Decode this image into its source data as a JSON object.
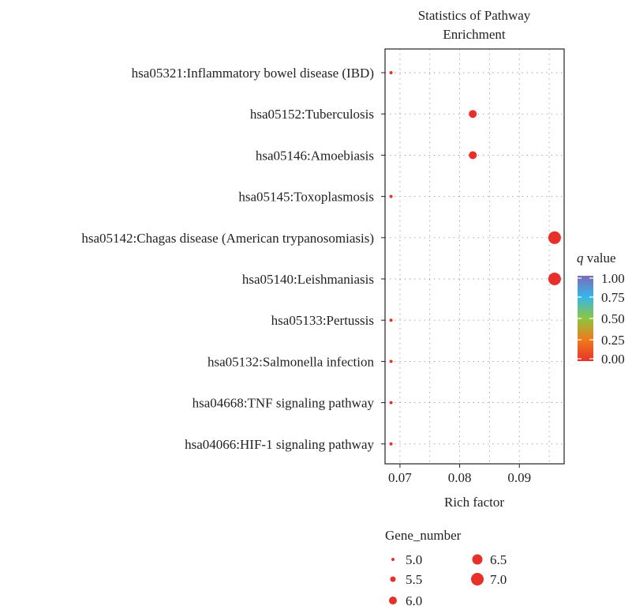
{
  "chart_data": {
    "type": "scatter",
    "title": "Statistics of Pathway Enrichment",
    "title_lines": [
      "Statistics of Pathway",
      "Enrichment"
    ],
    "xlabel": "Rich factor",
    "ylabel": "",
    "xlim": [
      0.0675,
      0.0975
    ],
    "xticks": [
      0.07,
      0.08,
      0.09
    ],
    "xtick_labels": [
      "0.07",
      "0.08",
      "0.09"
    ],
    "grid": true,
    "categories": [
      "hsa05321:Inflammatory bowel disease (IBD)",
      "hsa05152:Tuberculosis",
      "hsa05146:Amoebiasis",
      "hsa05145:Toxoplasmosis",
      "hsa05142:Chagas disease (American trypanosomiasis)",
      "hsa05140:Leishmaniasis",
      "hsa05133:Pertussis",
      "hsa05132:Salmonella infection",
      "hsa04668:TNF signaling pathway",
      "hsa04066:HIF-1 signaling pathway"
    ],
    "points": [
      {
        "pathway": "hsa05321:Inflammatory bowel disease (IBD)",
        "rich_factor": 0.0685,
        "gene_number": 5,
        "q_value": 0.0
      },
      {
        "pathway": "hsa05152:Tuberculosis",
        "rich_factor": 0.0822,
        "gene_number": 6,
        "q_value": 0.0
      },
      {
        "pathway": "hsa05146:Amoebiasis",
        "rich_factor": 0.0822,
        "gene_number": 6,
        "q_value": 0.0
      },
      {
        "pathway": "hsa05145:Toxoplasmosis",
        "rich_factor": 0.0685,
        "gene_number": 5,
        "q_value": 0.0
      },
      {
        "pathway": "hsa05142:Chagas disease (American trypanosomiasis)",
        "rich_factor": 0.0959,
        "gene_number": 7,
        "q_value": 0.0
      },
      {
        "pathway": "hsa05140:Leishmaniasis",
        "rich_factor": 0.0959,
        "gene_number": 7,
        "q_value": 0.0
      },
      {
        "pathway": "hsa05133:Pertussis",
        "rich_factor": 0.0685,
        "gene_number": 5,
        "q_value": 0.0
      },
      {
        "pathway": "hsa05132:Salmonella infection",
        "rich_factor": 0.0685,
        "gene_number": 5,
        "q_value": 0.0
      },
      {
        "pathway": "hsa04668:TNF signaling pathway",
        "rich_factor": 0.0685,
        "gene_number": 5,
        "q_value": 0.0
      },
      {
        "pathway": "hsa04066:HIF-1 signaling pathway",
        "rich_factor": 0.0685,
        "gene_number": 5,
        "q_value": 0.0
      }
    ],
    "color_legend": {
      "title_italic": "q",
      "title_rest": " value",
      "ticks": [
        1.0,
        0.75,
        0.5,
        0.25,
        0.0
      ],
      "tick_labels": [
        "1.00",
        "0.75",
        "0.50",
        "0.25",
        "0.00"
      ],
      "colors": [
        "#e8322c",
        "#f07a1a",
        "#8dc63f",
        "#36b7e8",
        "#7b6bb8"
      ]
    },
    "size_legend": {
      "title": "Gene_number",
      "values": [
        5.0,
        5.5,
        6.0,
        6.5,
        7.0
      ],
      "labels": [
        "5.0",
        "5.5",
        "6.0",
        "6.5",
        "7.0"
      ]
    },
    "point_color": "#e8302a",
    "size_range": [
      5,
      7
    ]
  }
}
